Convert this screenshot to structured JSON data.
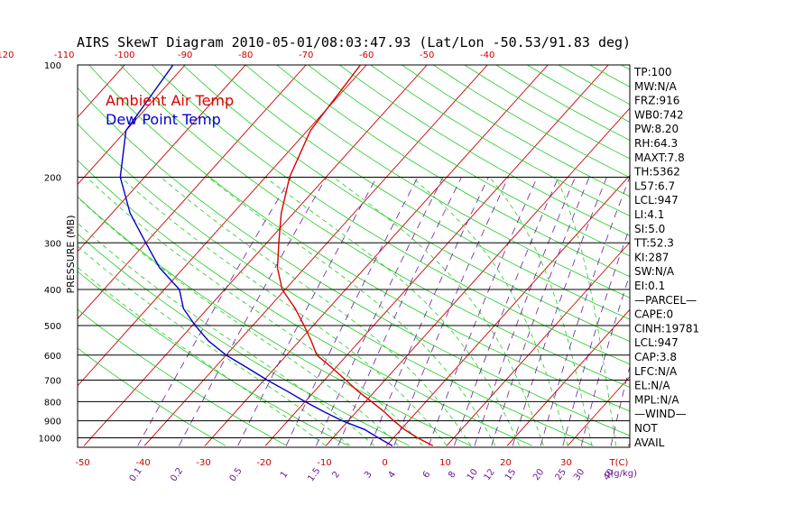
{
  "title": "AIRS SkewT Diagram 2010-05-01/08:03:47.93 (Lat/Lon -50.53/91.83 deg)",
  "legend": {
    "air_temp": "Ambient Air Temp",
    "dew_point": "Dew Point Temp"
  },
  "colors": {
    "air_temp": "#dd0000",
    "dew_point": "#0000cc",
    "isotherm": "#cc0000",
    "dry_adiabat": "#22cc22",
    "moist_adiabat": "#22cc22",
    "mixing_ratio": "#6a1b9a",
    "isobar": "#000000"
  },
  "stats": [
    "TP:100",
    "MW:N/A",
    "FRZ:916",
    "WB0:742",
    "PW:8.20",
    "RH:64.3",
    "MAXT:7.8",
    "TH:5362",
    "L57:6.7",
    "LCL:947",
    "LI:4.1",
    "SI:5.0",
    "TT:52.3",
    "KI:287",
    "SW:N/A",
    "EI:0.1",
    "—PARCEL—",
    "CAPE:0",
    "CINH:19781",
    "LCL:947",
    "CAP:3.8",
    "LFC:N/A",
    "EL:N/A",
    "MPL:N/A",
    "—WIND—",
    "NOT",
    "AVAIL"
  ],
  "chart_data": {
    "type": "line",
    "title": "AIRS SkewT Diagram 2010-05-01/08:03:47.93 (Lat/Lon -50.53/91.83 deg)",
    "ylabel": "PRESSURE (MB)",
    "y_scale": "log",
    "y_inverted": true,
    "ylim": [
      1050,
      100
    ],
    "pressure_ticks": [
      100,
      200,
      300,
      400,
      500,
      600,
      700,
      800,
      900,
      1000
    ],
    "bottom_temp_ticks": [
      -50,
      -40,
      -30,
      -20,
      -10,
      0,
      10,
      20,
      30
    ],
    "bottom_temp_unit_label": "T(C)",
    "top_temp_ticks": [
      -120,
      -110,
      -100,
      -90,
      -80,
      -70,
      -60,
      -50,
      -40
    ],
    "mixing_ratio_labels": [
      "0.1",
      "0.2",
      "0.5",
      "1",
      "1.5",
      "2",
      "3",
      "4",
      "6",
      "8",
      "10",
      "12",
      "15",
      "20",
      "25",
      "30",
      "40"
    ],
    "mixing_ratio_unit_label": "q(g/kg)",
    "series": [
      {
        "name": "Ambient Air Temp",
        "pressure": [
          1050,
          1000,
          950,
          900,
          850,
          800,
          750,
          700,
          650,
          600,
          550,
          500,
          450,
          400,
          350,
          300,
          250,
          200,
          150,
          100
        ],
        "temperature_c": [
          7.7,
          4.0,
          0.6,
          -2.5,
          -5.5,
          -9.0,
          -12.8,
          -16.5,
          -20.5,
          -25.0,
          -28.0,
          -31.5,
          -35.5,
          -40.5,
          -44.5,
          -48.0,
          -52.0,
          -56.0,
          -59.5,
          -61.0
        ]
      },
      {
        "name": "Dew Point Temp",
        "pressure": [
          1050,
          1000,
          950,
          900,
          850,
          800,
          750,
          700,
          650,
          600,
          550,
          500,
          450,
          400,
          350,
          300,
          250,
          200,
          150,
          100
        ],
        "temperature_c": [
          1.0,
          -2.5,
          -6.0,
          -11.0,
          -15.5,
          -20.0,
          -24.5,
          -29.5,
          -34.5,
          -40.0,
          -45.0,
          -49.5,
          -54.0,
          -57.5,
          -64.0,
          -70.0,
          -77.0,
          -84.0,
          -90.0,
          -92.0
        ]
      }
    ]
  }
}
